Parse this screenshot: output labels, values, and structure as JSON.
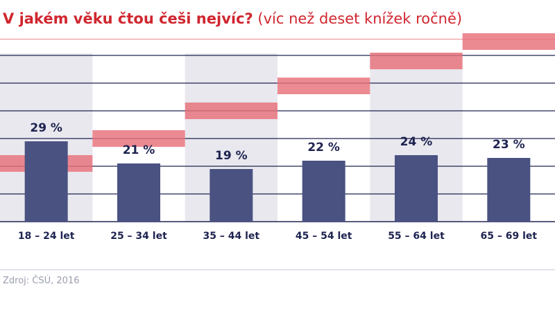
{
  "title": {
    "main": "V jakém věku čtou češi nejvíc?",
    "sub": "(víc než deset knížek ročně)"
  },
  "source": "Zdroj: ČSÚ, 2016",
  "colors": {
    "title": "#d0262f",
    "bar": "#4a5282",
    "band": "#e8707a",
    "gridline": "#1e2350",
    "shade": "#e8e8ee",
    "rule": "#e8888f",
    "label": "#1e2350"
  },
  "chart_data": {
    "type": "bar",
    "categories": [
      "18 – 24 let",
      "25 – 34 let",
      "35 – 44 let",
      "45 – 54 let",
      "55 – 64 let",
      "65 – 69 let"
    ],
    "values": [
      29,
      21,
      19,
      22,
      24,
      23
    ],
    "value_labels": [
      "29 %",
      "21 %",
      "19 %",
      "22 %",
      "24 %",
      "23 %"
    ],
    "unit": "%",
    "ylim": [
      0,
      60
    ],
    "grid": true,
    "shaded_columns": [
      0,
      2,
      4
    ],
    "background_steps": [
      {
        "from": 18,
        "to": 24
      },
      {
        "from": 27,
        "to": 33
      },
      {
        "from": 37,
        "to": 43
      },
      {
        "from": 46,
        "to": 52
      },
      {
        "from": 55,
        "to": 61
      },
      {
        "from": 62,
        "to": 68
      }
    ]
  }
}
